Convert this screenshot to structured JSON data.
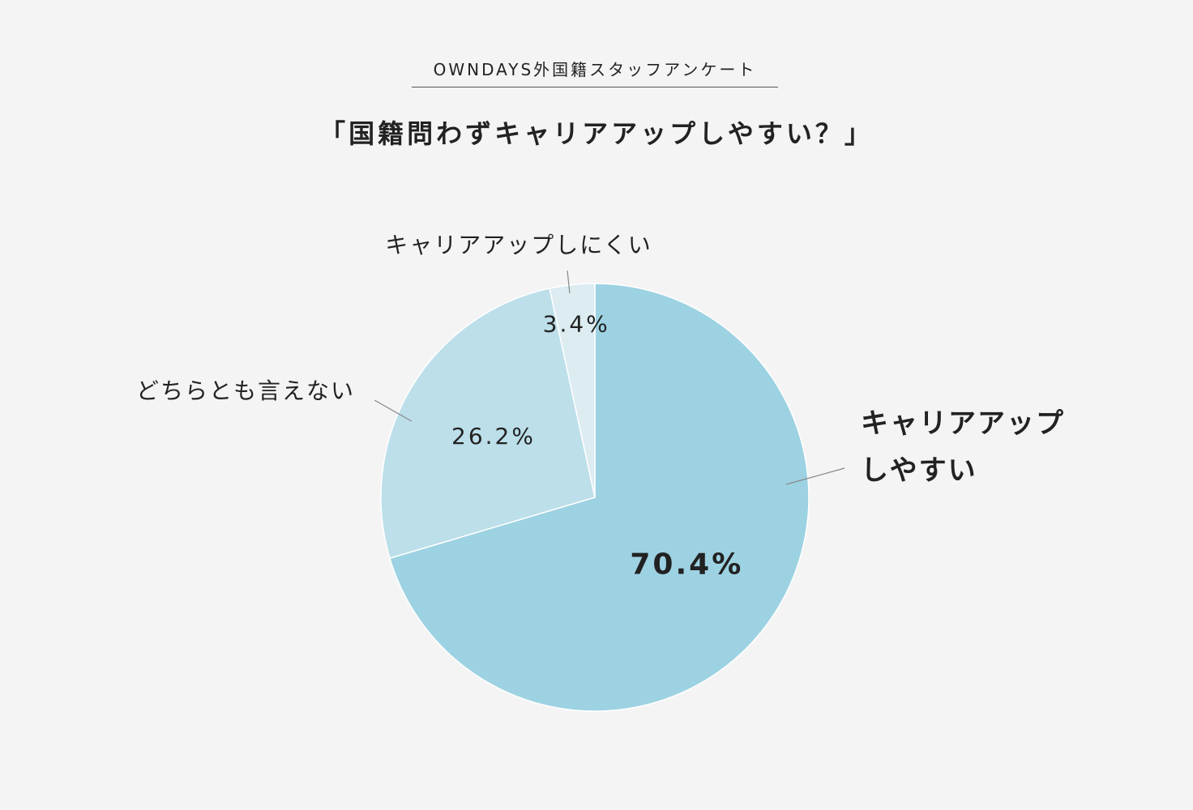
{
  "header": {
    "subtitle": "OWNDAYS外国籍スタッフアンケート",
    "title": "「国籍問わずキャリアアップしやすい？」"
  },
  "chart_data": {
    "type": "pie",
    "title": "「国籍問わずキャリアアップしやすい？」",
    "subtitle": "OWNDAYS外国籍スタッフアンケート",
    "start_angle_deg": 0,
    "direction": "clockwise",
    "slices": [
      {
        "label_lines": [
          "キャリアアップ",
          "しやすい"
        ],
        "value": 70.4,
        "display": "70.4%",
        "color": "#9dd2e2"
      },
      {
        "label_lines": [
          "どちらとも言えない"
        ],
        "value": 26.2,
        "display": "26.2%",
        "color": "#bcdfea"
      },
      {
        "label_lines": [
          "キャリアアップしにくい"
        ],
        "value": 3.4,
        "display": "3.4%",
        "color": "#dcecf1"
      }
    ]
  }
}
